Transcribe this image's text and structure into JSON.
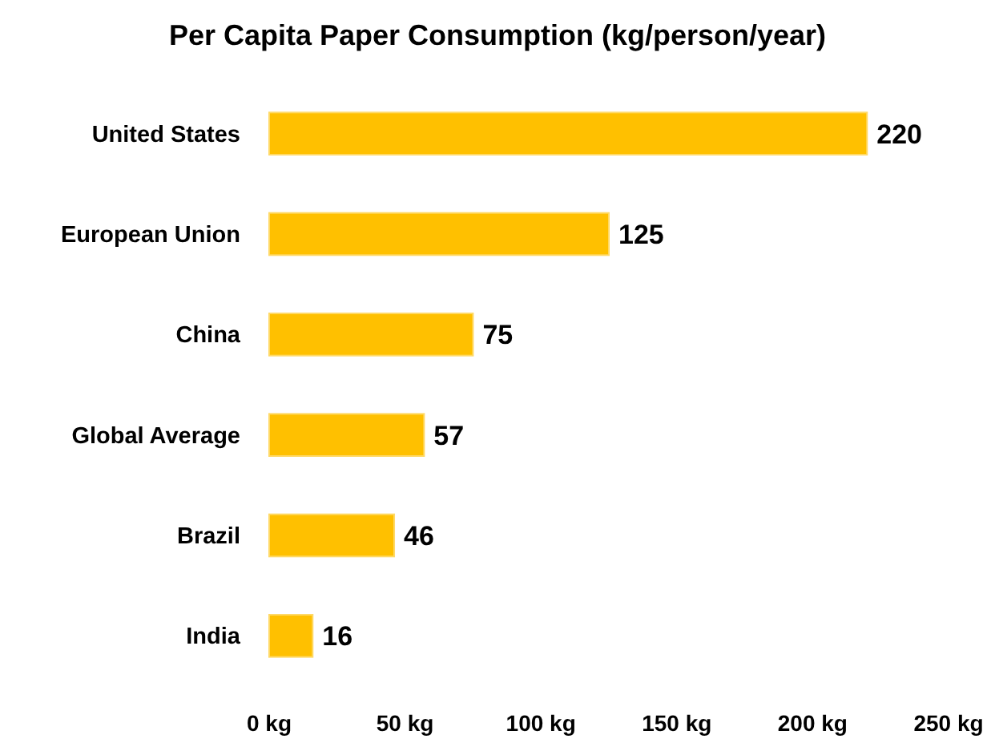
{
  "chart_data": {
    "type": "bar",
    "orientation": "horizontal",
    "title": "Per Capita Paper Consumption (kg/person/year)",
    "categories": [
      "United States",
      "European Union",
      "China",
      "Global Average",
      "Brazil",
      "India"
    ],
    "values": [
      220,
      125,
      75,
      57,
      46,
      16
    ],
    "color": "#ffc000",
    "xlim": [
      0,
      250
    ],
    "xticks": [
      {
        "value": 0,
        "label": "0 kg"
      },
      {
        "value": 50,
        "label": "50 kg"
      },
      {
        "value": 100,
        "label": "100 kg"
      },
      {
        "value": 150,
        "label": "150 kg"
      },
      {
        "value": 200,
        "label": "200 kg"
      },
      {
        "value": 250,
        "label": "250 kg"
      }
    ],
    "data_labels": true
  }
}
